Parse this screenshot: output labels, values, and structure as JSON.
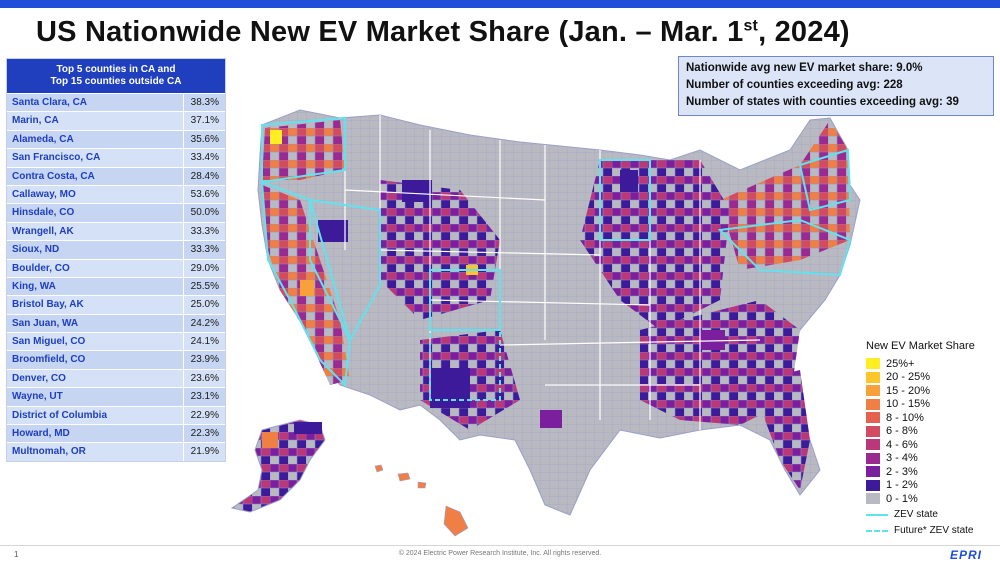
{
  "title": {
    "main": "US Nationwide New EV Market Share (Jan. – Mar. 1",
    "sup": "st",
    "end": ", 2024)"
  },
  "table": {
    "header_line1": "Top 5 counties in CA and",
    "header_line2": "Top 15 counties outside CA",
    "rows": [
      {
        "name": "Santa Clara, CA",
        "value": "38.3%"
      },
      {
        "name": "Marin, CA",
        "value": "37.1%"
      },
      {
        "name": "Alameda, CA",
        "value": "35.6%"
      },
      {
        "name": "San Francisco, CA",
        "value": "33.4%"
      },
      {
        "name": "Contra Costa, CA",
        "value": "28.4%"
      },
      {
        "name": "Callaway, MO",
        "value": "53.6%"
      },
      {
        "name": "Hinsdale, CO",
        "value": "50.0%"
      },
      {
        "name": "Wrangell, AK",
        "value": "33.3%"
      },
      {
        "name": "Sioux, ND",
        "value": "33.3%"
      },
      {
        "name": "Boulder, CO",
        "value": "29.0%"
      },
      {
        "name": "King, WA",
        "value": "25.5%"
      },
      {
        "name": "Bristol Bay, AK",
        "value": "25.0%"
      },
      {
        "name": "San Juan, WA",
        "value": "24.2%"
      },
      {
        "name": "San Miguel, CO",
        "value": "24.1%"
      },
      {
        "name": "Broomfield, CO",
        "value": "23.9%"
      },
      {
        "name": "Denver, CO",
        "value": "23.6%"
      },
      {
        "name": "Wayne, UT",
        "value": "23.1%"
      },
      {
        "name": "District of Columbia",
        "value": "22.9%"
      },
      {
        "name": "Howard, MD",
        "value": "22.3%"
      },
      {
        "name": "Multnomah, OR",
        "value": "21.9%"
      }
    ]
  },
  "stats": {
    "line1": "Nationwide avg new EV market share: 9.0%",
    "line2": "Number of counties exceeding avg: 228",
    "line3": "Number of states with counties exceeding avg: 39"
  },
  "legend": {
    "title": "New EV Market Share",
    "items": [
      {
        "label": "25%+",
        "color": "#ffee22"
      },
      {
        "label": "20 - 25%",
        "color": "#fcc52a"
      },
      {
        "label": "15 - 20%",
        "color": "#f8a13a"
      },
      {
        "label": "10 - 15%",
        "color": "#f07f45"
      },
      {
        "label": "8 - 10%",
        "color": "#e4604f"
      },
      {
        "label": "6 - 8%",
        "color": "#d24b60"
      },
      {
        "label": "4 - 6%",
        "color": "#b8387a"
      },
      {
        "label": "3 - 4%",
        "color": "#9a2a8f"
      },
      {
        "label": "2 - 3%",
        "color": "#7b1f9e"
      },
      {
        "label": "1 - 2%",
        "color": "#3c1a9a"
      },
      {
        "label": "0 - 1%",
        "color": "#b9b9c2"
      }
    ],
    "zev_state": "ZEV state",
    "future_zev_state": "Future* ZEV state",
    "zev_color": "#5fe3ee"
  },
  "footer": {
    "page": "1",
    "copyright": "© 2024 Electric Power Research Institute, Inc. All rights reserved.",
    "logo": "EPRI"
  }
}
